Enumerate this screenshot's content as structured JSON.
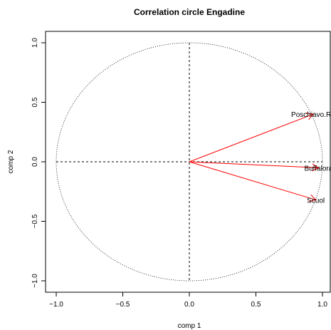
{
  "chart_data": {
    "type": "scatter",
    "title": "Correlation circle Engadine",
    "xlabel": "comp 1",
    "ylabel": "comp 2",
    "xlim": [
      -1.0,
      1.0
    ],
    "ylim": [
      -1.0,
      1.0
    ],
    "x_ticks": [
      -1.0,
      -0.5,
      0.0,
      0.5,
      1.0
    ],
    "x_tick_labels": [
      "−1.0",
      "−0.5",
      "0.0",
      "0.5",
      "1.0"
    ],
    "y_ticks": [
      -1.0,
      -0.5,
      0.0,
      0.5,
      1.0
    ],
    "y_tick_labels": [
      "−1.0",
      "−0.5",
      "0.0",
      "0.5",
      "1.0"
    ],
    "unit_circle": true,
    "reference_lines": {
      "x": 0,
      "y": 0
    },
    "arrow_color": "#ff0000",
    "variables": [
      {
        "name": "Poschiavo.Ro",
        "x": 0.93,
        "y": 0.4
      },
      {
        "name": "Buffalora",
        "x": 0.97,
        "y": -0.05
      },
      {
        "name": "Scuol",
        "x": 0.95,
        "y": -0.32
      }
    ]
  }
}
